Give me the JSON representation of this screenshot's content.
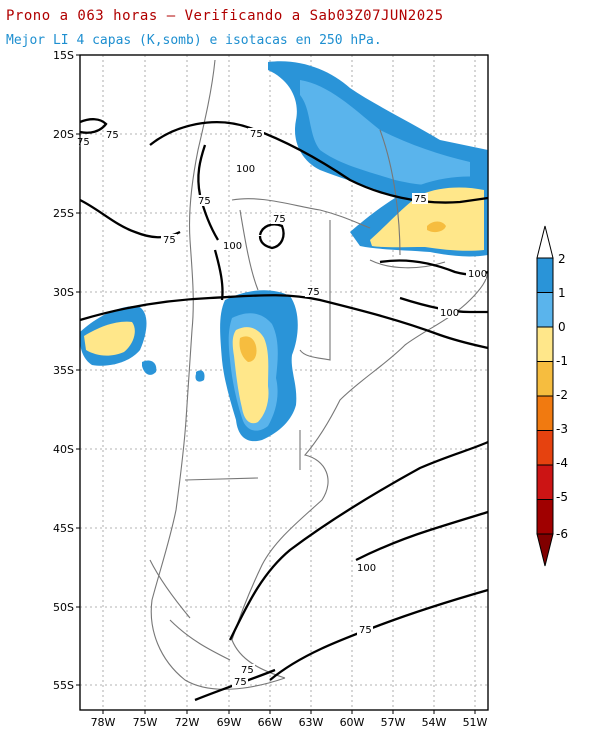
{
  "title": {
    "line1": "Prono a 063 horas — Verificando a Sab03Z07JUN2025",
    "line2": "Mejor LI 4 capas (K,somb) e isotacas en 250 hPa.",
    "line1_color": "#b00000",
    "line2_color": "#1e8fd0"
  },
  "map": {
    "lat_labels": [
      "15S",
      "20S",
      "25S",
      "30S",
      "35S",
      "40S",
      "45S",
      "50S",
      "55S"
    ],
    "lon_labels": [
      "78W",
      "75W",
      "72W",
      "69W",
      "66W",
      "63W",
      "60W",
      "57W",
      "54W",
      "51W"
    ],
    "contour_labels": [
      "75",
      "75",
      "75",
      "100",
      "75",
      "75",
      "75",
      "100",
      "75",
      "100",
      "75",
      "100",
      "100",
      "75",
      "75",
      "75"
    ]
  },
  "colorbar": {
    "labels": [
      "2",
      "1",
      "0",
      "-1",
      "-2",
      "-3",
      "-4",
      "-5",
      "-6"
    ],
    "colors": [
      "#ffffff",
      "#2a94d8",
      "#5ab4ec",
      "#ffe78a",
      "#f6bd3f",
      "#f17a10",
      "#e6420f",
      "#cc1414",
      "#a00000",
      "#800000"
    ]
  }
}
